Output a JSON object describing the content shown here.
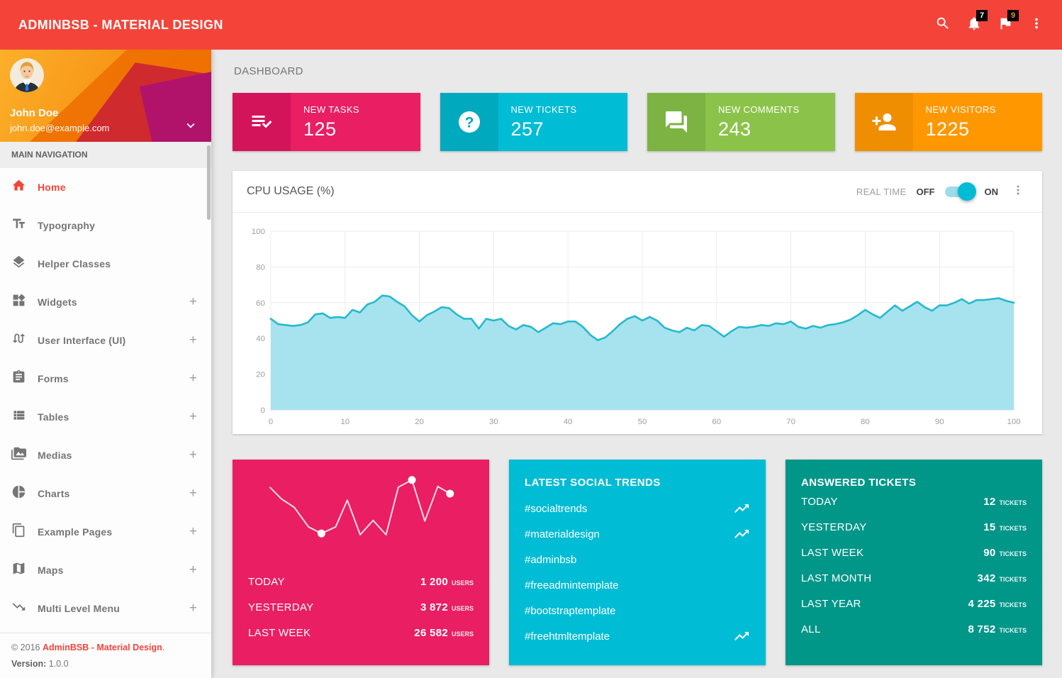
{
  "colors": {
    "header_red": "#f4443a",
    "pink": "#e91e63",
    "pink_dark": "#d4145a",
    "cyan": "#00bcd4",
    "cyan_dark": "#00a9be",
    "green": "#8bc34a",
    "green_dark": "#7cb342",
    "orange": "#ff9800",
    "orange_dark": "#ef8e00",
    "teal": "#009688"
  },
  "topbar": {
    "title": "ADMINBSB - MATERIAL DESIGN",
    "notification_count": "7",
    "flag_count": "9"
  },
  "sidebar": {
    "user": {
      "name": "John Doe",
      "email": "john.doe@example.com"
    },
    "nav_label": "MAIN NAVIGATION",
    "nav": [
      {
        "label": "Home",
        "icon": "home-icon",
        "suffix": ""
      },
      {
        "label": "Typography",
        "icon": "typography-icon",
        "suffix": ""
      },
      {
        "label": "Helper Classes",
        "icon": "layers-icon",
        "suffix": ""
      },
      {
        "label": "Widgets",
        "icon": "widgets-icon",
        "suffix": "+"
      },
      {
        "label": "User Interface (UI)",
        "icon": "swap-calls-icon",
        "suffix": "+"
      },
      {
        "label": "Forms",
        "icon": "clipboard-icon",
        "suffix": "+"
      },
      {
        "label": "Tables",
        "icon": "list-icon",
        "suffix": "+"
      },
      {
        "label": "Medias",
        "icon": "media-icon",
        "suffix": "+"
      },
      {
        "label": "Charts",
        "icon": "pie-chart-icon",
        "suffix": "+"
      },
      {
        "label": "Example Pages",
        "icon": "copy-icon",
        "suffix": "+"
      },
      {
        "label": "Maps",
        "icon": "map-icon",
        "suffix": "+"
      },
      {
        "label": "Multi Level Menu",
        "icon": "trending-down-icon",
        "suffix": "+"
      }
    ],
    "footer": {
      "copyright_prefix": "© 2016 ",
      "copyright_link": "AdminBSB - Material Design",
      "copyright_suffix": ".",
      "version_label": "Version: ",
      "version_value": "1.0.0"
    }
  },
  "main": {
    "page_title": "DASHBOARD",
    "infoboxes": [
      {
        "label": "NEW TASKS",
        "value": "125",
        "icon": "playlist-check-icon"
      },
      {
        "label": "NEW TICKETS",
        "value": "257",
        "icon": "help-icon"
      },
      {
        "label": "NEW COMMENTS",
        "value": "243",
        "icon": "forum-icon"
      },
      {
        "label": "NEW VISITORS",
        "value": "1225",
        "icon": "person-add-icon"
      }
    ],
    "cpu_card": {
      "title": "CPU USAGE (%)",
      "realtime_label": "REAL TIME",
      "off_label": "OFF",
      "on_label": "ON",
      "toggle_state": "on"
    },
    "visitors_card": {
      "rows": [
        {
          "label": "TODAY",
          "value": "1 200",
          "unit": "USERS"
        },
        {
          "label": "YESTERDAY",
          "value": "3 872",
          "unit": "USERS"
        },
        {
          "label": "LAST WEEK",
          "value": "26 582",
          "unit": "USERS"
        }
      ]
    },
    "trends_card": {
      "title": "LATEST SOCIAL TRENDS",
      "items": [
        {
          "tag": "#socialtrends",
          "trending": true
        },
        {
          "tag": "#materialdesign",
          "trending": true
        },
        {
          "tag": "#adminbsb",
          "trending": false
        },
        {
          "tag": "#freeadmintemplate",
          "trending": false
        },
        {
          "tag": "#bootstraptemplate",
          "trending": false
        },
        {
          "tag": "#freehtmltemplate",
          "trending": true
        }
      ]
    },
    "tickets_card": {
      "title": "ANSWERED TICKETS",
      "rows": [
        {
          "label": "TODAY",
          "value": "12",
          "unit": "TICKETS"
        },
        {
          "label": "YESTERDAY",
          "value": "15",
          "unit": "TICKETS"
        },
        {
          "label": "LAST WEEK",
          "value": "90",
          "unit": "TICKETS"
        },
        {
          "label": "LAST MONTH",
          "value": "342",
          "unit": "TICKETS"
        },
        {
          "label": "LAST YEAR",
          "value": "4 225",
          "unit": "TICKETS"
        },
        {
          "label": "ALL",
          "value": "8 752",
          "unit": "TICKETS"
        }
      ]
    }
  },
  "chart_data": {
    "cpu_usage": {
      "type": "area",
      "title": "CPU USAGE (%)",
      "xlabel": "",
      "ylabel": "",
      "xlim": [
        0,
        100
      ],
      "ylim": [
        0,
        100
      ],
      "xtick_step": 10,
      "ytick_step": 20,
      "grid": true,
      "legend": "none",
      "line_color": "#26b9cc",
      "fill_color": "#9fe1ed",
      "x_step": 1,
      "values": [
        51,
        48,
        47.5,
        47,
        47.5,
        49,
        53.5,
        54,
        51.5,
        52,
        51.5,
        56,
        54.5,
        59,
        60.5,
        64,
        63.5,
        60.5,
        58,
        53,
        49.5,
        53,
        55,
        57.5,
        57,
        53.5,
        51,
        51,
        45.5,
        51,
        50,
        51,
        47,
        45,
        47.5,
        46.5,
        43.5,
        46,
        48.5,
        48,
        49.5,
        49.5,
        46.5,
        42,
        39,
        40.5,
        44,
        48,
        51,
        52.5,
        50,
        52,
        50,
        46,
        44.5,
        43.5,
        46,
        44.5,
        47.5,
        47,
        44,
        41,
        44,
        46.5,
        46,
        46.5,
        47.5,
        47,
        48.5,
        48,
        49.5,
        46.5,
        45.5,
        47,
        46,
        47.5,
        48,
        49,
        50.5,
        53,
        56,
        53.5,
        51.5,
        55,
        58.5,
        55.5,
        58,
        60.5,
        57.5,
        55.5,
        58.5,
        58.5,
        60,
        62,
        59.5,
        61.5,
        61.5,
        62,
        62.5,
        61,
        60
      ]
    },
    "visitors_sparkline": {
      "type": "line",
      "title": "",
      "line_color": "rgba(255,255,255,0.85)",
      "dot_color": "#ffffff",
      "points": [
        [
          40,
          27
        ],
        [
          58,
          45
        ],
        [
          78,
          58
        ],
        [
          100,
          88
        ],
        [
          120,
          98
        ],
        [
          142,
          88
        ],
        [
          160,
          47
        ],
        [
          180,
          100
        ],
        [
          200,
          78
        ],
        [
          220,
          100
        ],
        [
          239,
          27
        ],
        [
          260,
          16
        ],
        [
          280,
          79
        ],
        [
          300,
          26
        ],
        [
          319,
          37
        ]
      ],
      "dot_indices": [
        4,
        11,
        14
      ]
    }
  }
}
